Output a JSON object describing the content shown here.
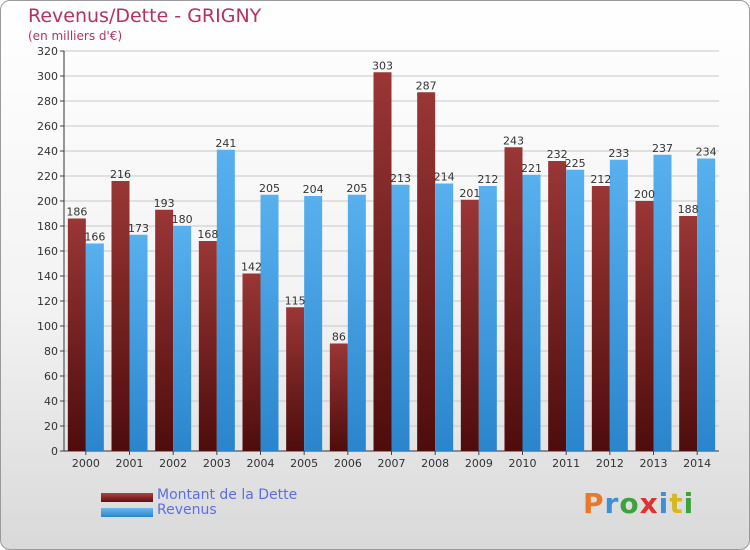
{
  "title": "Revenus/Dette - GRIGNY",
  "subtitle": "(en milliers d'€)",
  "logo": {
    "letters": [
      "P",
      "r",
      "o",
      "x",
      "i",
      "t",
      "i"
    ],
    "colors": [
      "#e8792a",
      "#3d8fd6",
      "#3ba33b",
      "#e03030",
      "#3d8fd6",
      "#d8b820",
      "#3ba33b"
    ]
  },
  "colors": {
    "dette": "#8b2f2f",
    "revenus": "#3d9be0",
    "title": "#b5315f",
    "legend_text": "#5b6ee8"
  },
  "chart_data": {
    "type": "bar",
    "title": "Revenus/Dette - GRIGNY",
    "subtitle": "(en milliers d'€)",
    "categories": [
      "2000",
      "2001",
      "2002",
      "2003",
      "2004",
      "2005",
      "2006",
      "2007",
      "2008",
      "2009",
      "2010",
      "2011",
      "2012",
      "2013",
      "2014"
    ],
    "series": [
      {
        "name": "Montant de la Dette",
        "values": [
          186,
          216,
          193,
          168,
          142,
          115,
          86,
          303,
          287,
          201,
          243,
          232,
          212,
          200,
          188
        ]
      },
      {
        "name": "Revenus",
        "values": [
          166,
          173,
          180,
          241,
          205,
          204,
          205,
          213,
          214,
          212,
          221,
          225,
          233,
          237,
          234
        ]
      }
    ],
    "ylim": [
      0,
      320
    ],
    "yticks": [
      0,
      20,
      40,
      60,
      80,
      100,
      120,
      140,
      160,
      180,
      200,
      220,
      240,
      260,
      280,
      300,
      320
    ],
    "grid": true,
    "legend": "bottom-left"
  }
}
